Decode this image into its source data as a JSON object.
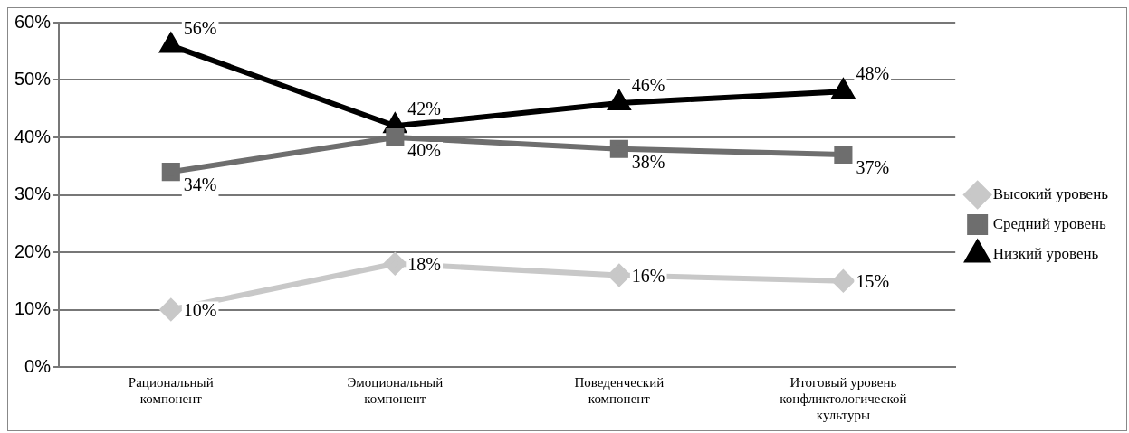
{
  "chart_data": {
    "type": "line",
    "categories": [
      "Рациональный компонент",
      "Эмоциональный компонент",
      "Поведенческий компонент",
      "Итоговый уровень конфликтологической культуры"
    ],
    "series": [
      {
        "name": "Высокий уровень",
        "color": "#c8c8c8",
        "marker": "diamond",
        "values": [
          10,
          18,
          16,
          15
        ],
        "value_labels": [
          "10%",
          "18%",
          "16%",
          "15%"
        ]
      },
      {
        "name": "Средний уровень",
        "color": "#6e6e6e",
        "marker": "square",
        "values": [
          34,
          40,
          38,
          37
        ],
        "value_labels": [
          "34%",
          "40%",
          "38%",
          "37%"
        ]
      },
      {
        "name": "Низкий уровень",
        "color": "#000000",
        "marker": "triangle",
        "values": [
          56,
          42,
          46,
          48
        ],
        "value_labels": [
          "56%",
          "42%",
          "46%",
          "48%"
        ]
      }
    ],
    "ylim": [
      0,
      60
    ],
    "yticks": [
      {
        "value": 0,
        "label": "0%"
      },
      {
        "value": 10,
        "label": "10%"
      },
      {
        "value": 20,
        "label": "20%"
      },
      {
        "value": 30,
        "label": "30%"
      },
      {
        "value": 40,
        "label": "40%"
      },
      {
        "value": 50,
        "label": "50%"
      },
      {
        "value": 60,
        "label": "60%"
      }
    ],
    "grid": "y",
    "legend": "right"
  }
}
